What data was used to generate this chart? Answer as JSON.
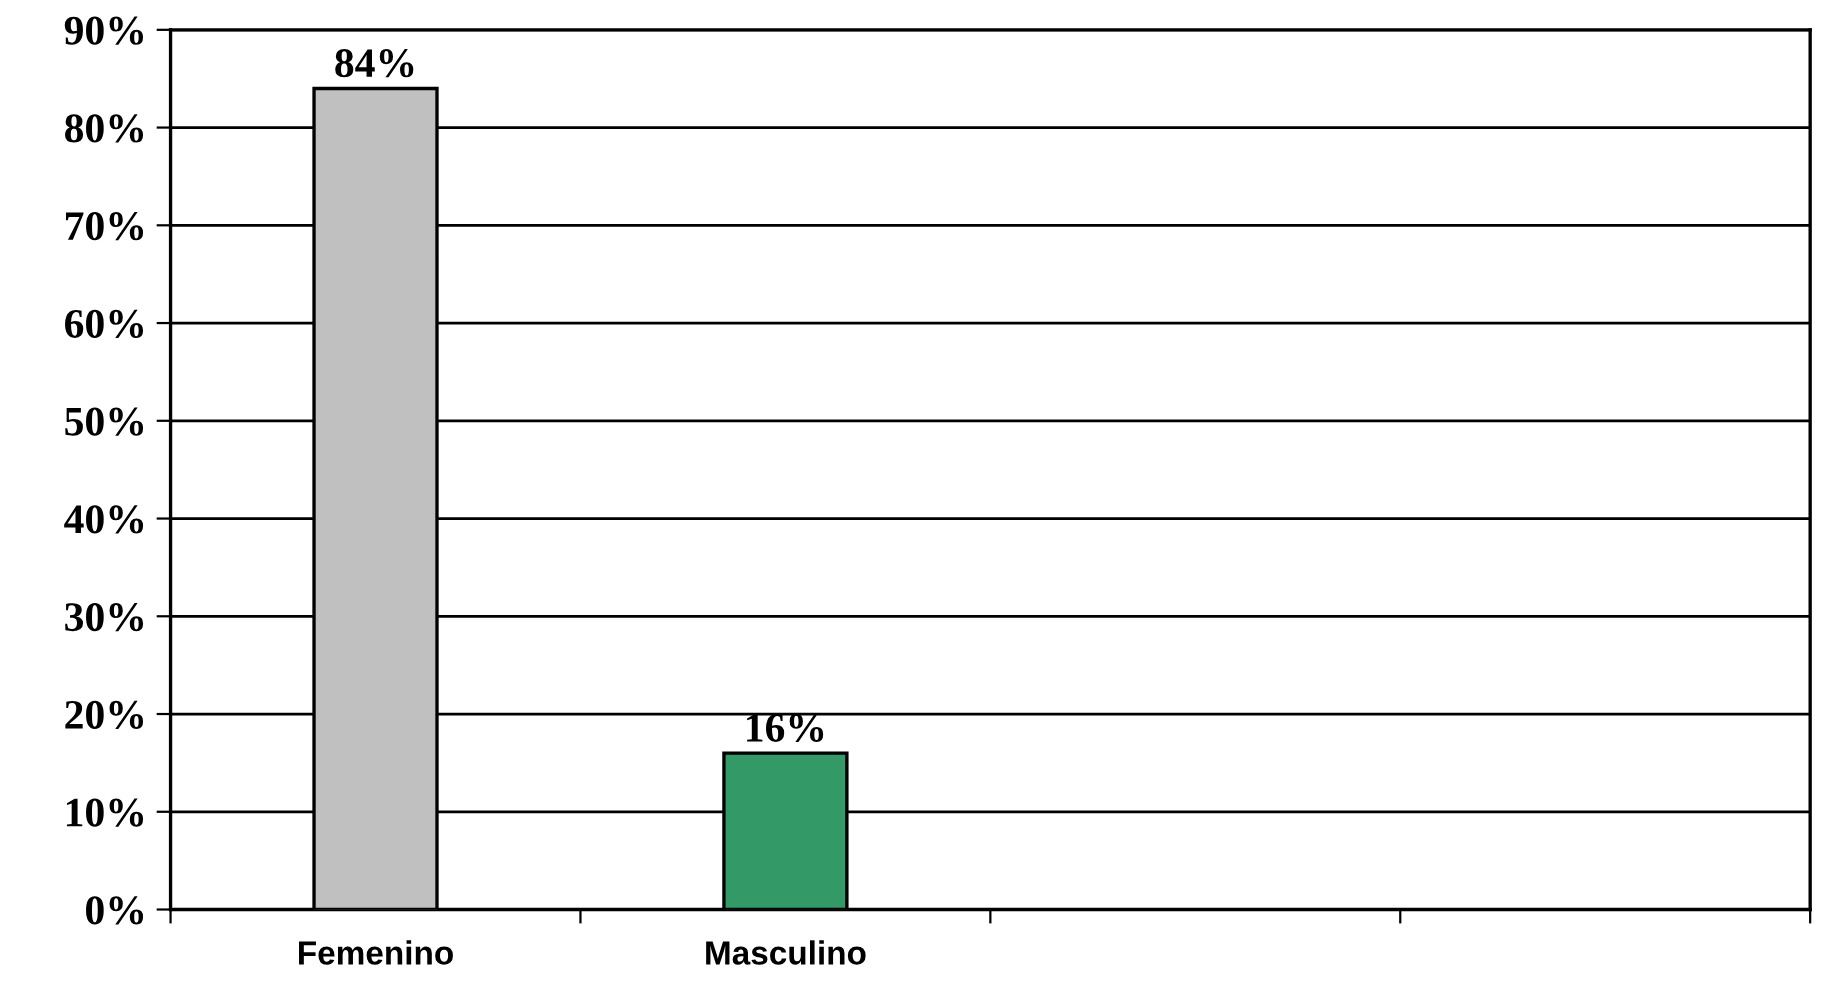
{
  "chart_data": {
    "type": "bar",
    "categories": [
      "Femenino",
      "Masculino",
      null,
      null
    ],
    "values": [
      84,
      16,
      null,
      null
    ],
    "colors": [
      "#c0c0c0",
      "#339966",
      null,
      null
    ],
    "value_labels": [
      "84%",
      "16%",
      null,
      null
    ],
    "ylim": [
      0,
      90
    ],
    "yticks": [
      {
        "value": 0,
        "label": "0%"
      },
      {
        "value": 10,
        "label": "10%"
      },
      {
        "value": 20,
        "label": "20%"
      },
      {
        "value": 30,
        "label": "30%"
      },
      {
        "value": 40,
        "label": "40%"
      },
      {
        "value": 50,
        "label": "50%"
      },
      {
        "value": 60,
        "label": "60%"
      },
      {
        "value": 70,
        "label": "70%"
      },
      {
        "value": 80,
        "label": "80%"
      },
      {
        "value": 90,
        "label": "90%"
      }
    ],
    "grid": "y",
    "legend": false
  }
}
